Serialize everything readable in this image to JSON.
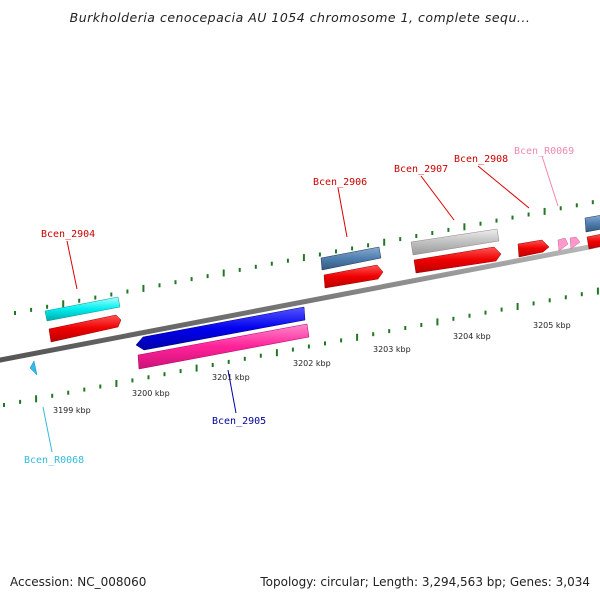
{
  "header": {
    "title": "Burkholderia cenocepacia AU 1054 chromosome 1, complete sequ..."
  },
  "footer": {
    "accession": "Accession: NC_008060",
    "summary": "Topology: circular; Length: 3,294,563 bp; Genes: 3,034"
  },
  "ticks": [
    {
      "label": "3199 kbp"
    },
    {
      "label": "3200 kbp"
    },
    {
      "label": "3201 kbp"
    },
    {
      "label": "3202 kbp"
    },
    {
      "label": "3203 kbp"
    },
    {
      "label": "3204 kbp"
    },
    {
      "label": "3205 kbp"
    }
  ],
  "genes": [
    {
      "label": "Bcen_2904",
      "color": "#cc0000"
    },
    {
      "label": "Bcen_2905",
      "color": "#000099"
    },
    {
      "label": "Bcen_2906",
      "color": "#cc0000"
    },
    {
      "label": "Bcen_2907",
      "color": "#cc0000"
    },
    {
      "label": "Bcen_2908",
      "color": "#cc0000"
    },
    {
      "label": "Bcen_R0068",
      "color": "#33bbdd"
    },
    {
      "label": "Bcen_R0069",
      "color": "#ee88aa"
    }
  ],
  "colors": {
    "cds": "#ff0000",
    "cog_cyan": "#00ffff",
    "cog_blue": "#0000ee",
    "cog_pink": "#ff3399",
    "cog_steel": "#4f7fb0",
    "cog_gray": "#c0c0c0",
    "rna_cyan": "#33bbee",
    "rna_pink": "#ff99cc",
    "backbone": "#777777",
    "tick": "#227722"
  }
}
